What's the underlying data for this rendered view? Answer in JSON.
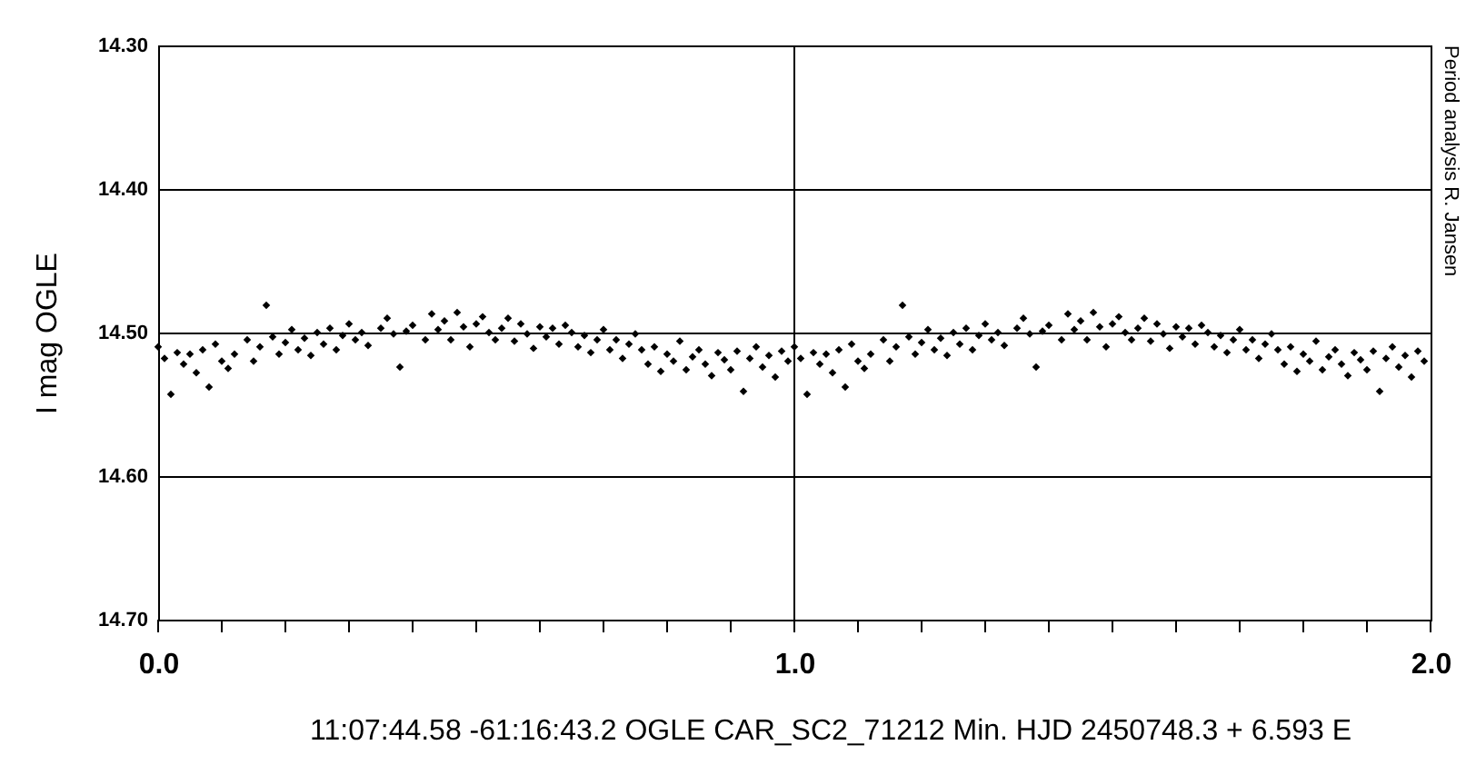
{
  "chart_data": {
    "type": "scatter",
    "ylabel": "I mag OGLE",
    "annotations": [
      "11:07:44.58 -61:16:43.2     OGLE CAR_SC2_71212     Min. HJD 2450748.3 + 6.593 E",
      "Period analysis R. Jansen"
    ],
    "xlim": [
      0,
      2
    ],
    "ylim": [
      14.7,
      14.3
    ],
    "xticks": [
      {
        "value": 0,
        "label": "0.0"
      },
      {
        "value": 0.1,
        "label": null
      },
      {
        "value": 0.2,
        "label": null
      },
      {
        "value": 0.3,
        "label": null
      },
      {
        "value": 0.4,
        "label": null
      },
      {
        "value": 0.5,
        "label": null
      },
      {
        "value": 0.6,
        "label": null
      },
      {
        "value": 0.7,
        "label": null
      },
      {
        "value": 0.8,
        "label": null
      },
      {
        "value": 0.9,
        "label": null
      },
      {
        "value": 1,
        "label": "1.0"
      },
      {
        "value": 1.1,
        "label": null
      },
      {
        "value": 1.2,
        "label": null
      },
      {
        "value": 1.3,
        "label": null
      },
      {
        "value": 1.4,
        "label": null
      },
      {
        "value": 1.5,
        "label": null
      },
      {
        "value": 1.6,
        "label": null
      },
      {
        "value": 1.7,
        "label": null
      },
      {
        "value": 1.8,
        "label": null
      },
      {
        "value": 1.9,
        "label": null
      },
      {
        "value": 2,
        "label": "2.0"
      }
    ],
    "yticks": [
      {
        "value": 14.3,
        "label": "14.30"
      },
      {
        "value": 14.4,
        "label": "14.40"
      },
      {
        "value": 14.5,
        "label": "14.50"
      },
      {
        "value": 14.6,
        "label": "14.60"
      },
      {
        "value": 14.7,
        "label": "14.70"
      }
    ],
    "grid": true,
    "marker": "diamond",
    "series": [
      {
        "color": "#000000",
        "x": [
          0.0,
          0.01,
          0.02,
          0.03,
          0.04,
          0.05,
          0.06,
          0.07,
          0.08,
          0.09,
          0.1,
          0.11,
          0.12,
          0.14,
          0.15,
          0.16,
          0.17,
          0.18,
          0.19,
          0.2,
          0.21,
          0.22,
          0.23,
          0.24,
          0.25,
          0.26,
          0.27,
          0.28,
          0.29,
          0.3,
          0.31,
          0.32,
          0.33,
          0.35,
          0.36,
          0.37,
          0.38,
          0.39,
          0.4,
          0.42,
          0.43,
          0.44,
          0.45,
          0.46,
          0.47,
          0.48,
          0.49,
          0.5,
          0.51,
          0.52,
          0.53,
          0.54,
          0.55,
          0.56,
          0.57,
          0.58,
          0.59,
          0.6,
          0.61,
          0.62,
          0.63,
          0.64,
          0.65,
          0.66,
          0.67,
          0.68,
          0.69,
          0.7,
          0.71,
          0.72,
          0.73,
          0.74,
          0.75,
          0.76,
          0.77,
          0.78,
          0.79,
          0.8,
          0.81,
          0.82,
          0.83,
          0.84,
          0.85,
          0.86,
          0.87,
          0.88,
          0.89,
          0.9,
          0.91,
          0.92,
          0.93,
          0.94,
          0.95,
          0.96,
          0.97,
          0.98,
          0.99,
          1.0,
          1.01,
          1.02,
          1.03,
          1.04,
          1.05,
          1.06,
          1.07,
          1.08,
          1.09,
          1.1,
          1.11,
          1.12,
          1.14,
          1.15,
          1.16,
          1.17,
          1.18,
          1.19,
          1.2,
          1.21,
          1.22,
          1.23,
          1.24,
          1.25,
          1.26,
          1.27,
          1.28,
          1.29,
          1.3,
          1.31,
          1.32,
          1.33,
          1.35,
          1.36,
          1.37,
          1.38,
          1.39,
          1.4,
          1.42,
          1.43,
          1.44,
          1.45,
          1.46,
          1.47,
          1.48,
          1.49,
          1.5,
          1.51,
          1.52,
          1.53,
          1.54,
          1.55,
          1.56,
          1.57,
          1.58,
          1.59,
          1.6,
          1.61,
          1.62,
          1.63,
          1.64,
          1.65,
          1.66,
          1.67,
          1.68,
          1.69,
          1.7,
          1.71,
          1.72,
          1.73,
          1.74,
          1.75,
          1.76,
          1.77,
          1.78,
          1.79,
          1.8,
          1.81,
          1.82,
          1.83,
          1.84,
          1.85,
          1.86,
          1.87,
          1.88,
          1.89,
          1.9,
          1.91,
          1.92,
          1.93,
          1.94,
          1.95,
          1.96,
          1.97,
          1.98,
          1.99
        ],
        "values": [
          14.51,
          14.518,
          14.543,
          14.514,
          14.522,
          14.515,
          14.528,
          14.512,
          14.538,
          14.508,
          14.52,
          14.525,
          14.515,
          14.505,
          14.52,
          14.51,
          14.481,
          14.503,
          14.515,
          14.507,
          14.498,
          14.512,
          14.504,
          14.516,
          14.5,
          14.508,
          14.497,
          14.512,
          14.502,
          14.494,
          14.505,
          14.5,
          14.509,
          14.497,
          14.49,
          14.501,
          14.524,
          14.499,
          14.495,
          14.505,
          14.487,
          14.498,
          14.492,
          14.505,
          14.486,
          14.496,
          14.51,
          14.494,
          14.489,
          14.5,
          14.505,
          14.497,
          14.49,
          14.506,
          14.494,
          14.501,
          14.511,
          14.496,
          14.503,
          14.497,
          14.508,
          14.495,
          14.5,
          14.51,
          14.502,
          14.514,
          14.505,
          14.498,
          14.512,
          14.505,
          14.518,
          14.508,
          14.501,
          14.512,
          14.522,
          14.51,
          14.527,
          14.515,
          14.52,
          14.506,
          14.526,
          14.517,
          14.512,
          14.522,
          14.53,
          14.514,
          14.519,
          14.526,
          14.513,
          14.541,
          14.518,
          14.51,
          14.524,
          14.516,
          14.531,
          14.513,
          14.52,
          14.51,
          14.518,
          14.543,
          14.514,
          14.522,
          14.515,
          14.528,
          14.512,
          14.538,
          14.508,
          14.52,
          14.525,
          14.515,
          14.505,
          14.52,
          14.51,
          14.481,
          14.503,
          14.515,
          14.507,
          14.498,
          14.512,
          14.504,
          14.516,
          14.5,
          14.508,
          14.497,
          14.512,
          14.502,
          14.494,
          14.505,
          14.5,
          14.509,
          14.497,
          14.49,
          14.501,
          14.524,
          14.499,
          14.495,
          14.505,
          14.487,
          14.498,
          14.492,
          14.505,
          14.486,
          14.496,
          14.51,
          14.494,
          14.489,
          14.5,
          14.505,
          14.497,
          14.49,
          14.506,
          14.494,
          14.501,
          14.511,
          14.496,
          14.503,
          14.497,
          14.508,
          14.495,
          14.5,
          14.51,
          14.502,
          14.514,
          14.505,
          14.498,
          14.512,
          14.505,
          14.518,
          14.508,
          14.501,
          14.512,
          14.522,
          14.51,
          14.527,
          14.515,
          14.52,
          14.506,
          14.526,
          14.517,
          14.512,
          14.522,
          14.53,
          14.514,
          14.519,
          14.526,
          14.513,
          14.541,
          14.518,
          14.51,
          14.524,
          14.516,
          14.531,
          14.513,
          14.52
        ]
      }
    ]
  }
}
